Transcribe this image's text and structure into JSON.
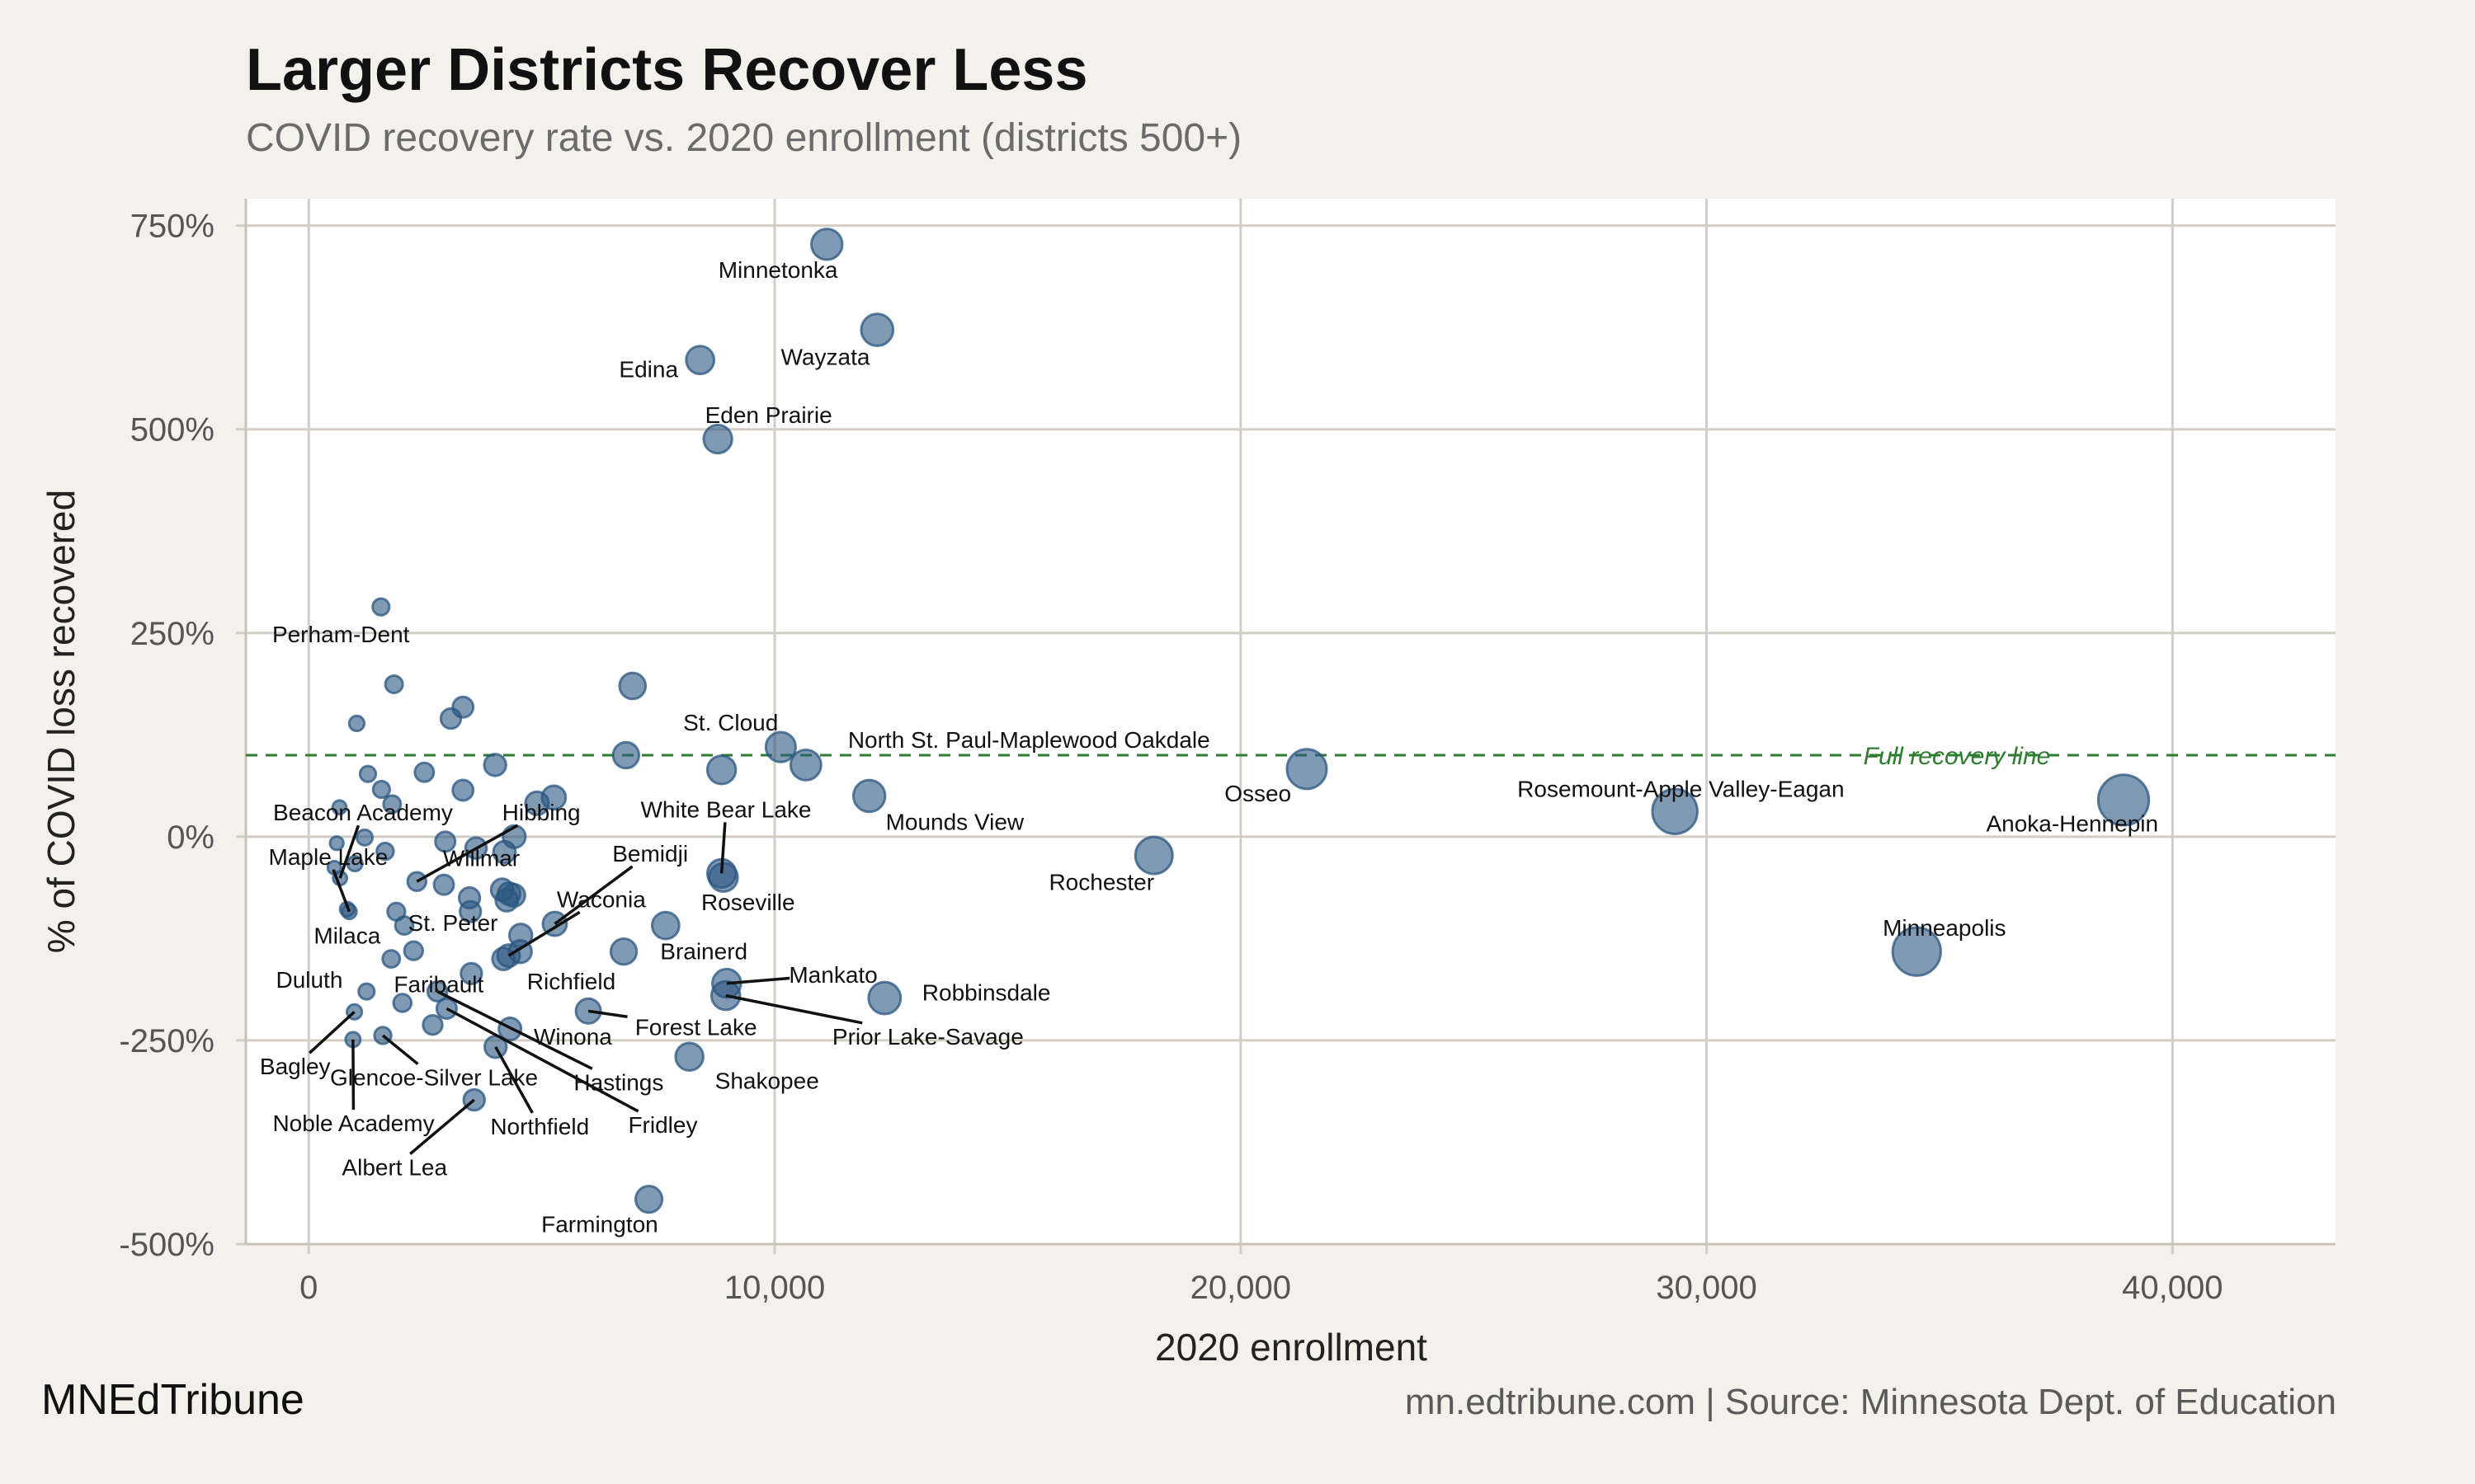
{
  "header": {
    "title": "Larger Districts Recover Less",
    "subtitle": "COVID recovery rate vs. 2020 enrollment (districts 500+)"
  },
  "footer": {
    "brand": "MNEdTribune",
    "source": "mn.edtribune.com | Source: Minnesota Dept. of Education"
  },
  "colors": {
    "background": "#f4f1ec",
    "panel": "#ffffff",
    "grid": "#d3cec5",
    "point": "#2b5680",
    "reference_line": "#2e7d32"
  },
  "chart_data": {
    "type": "scatter",
    "xlabel": "2020 enrollment",
    "ylabel": "% of COVID loss recovered",
    "xlim": [
      -1350,
      43500
    ],
    "ylim": [
      -500,
      783
    ],
    "x_ticks": [
      0,
      10000,
      20000,
      30000,
      40000
    ],
    "x_tick_labels": [
      "0",
      "10,000",
      "20,000",
      "30,000",
      "40,000"
    ],
    "y_ticks": [
      750,
      500,
      250,
      0,
      -250,
      -500
    ],
    "y_tick_labels": [
      "750%",
      "500%",
      "250%",
      "0%",
      "-250%",
      "-500%"
    ],
    "grid": true,
    "point_size_encodes": "2020 enrollment",
    "reference_line": {
      "y": 100,
      "label": "Full recovery line",
      "style": "dashed"
    },
    "points": [
      {
        "name": "Minnetonka",
        "x": 11120,
        "y": 727
      },
      {
        "name": "Wayzata",
        "x": 12200,
        "y": 622
      },
      {
        "name": "Edina",
        "x": 8400,
        "y": 585
      },
      {
        "name": "Eden Prairie",
        "x": 8780,
        "y": 488
      },
      {
        "name": "Perham-Dent",
        "x": 1550,
        "y": 282
      },
      {
        "name": "St. Cloud",
        "x": 10130,
        "y": 110
      },
      {
        "name": "North St. Paul-Maplewood Oakdale",
        "x": 10670,
        "y": 88
      },
      {
        "name": "Mounds View",
        "x": 12030,
        "y": 50
      },
      {
        "name": "White Bear Lake",
        "x": 8860,
        "y": -45
      },
      {
        "name": "Roseville",
        "x": 8900,
        "y": -50
      },
      {
        "name": "Osseo",
        "x": 21420,
        "y": 83
      },
      {
        "name": "Rosemount-Apple Valley-Eagan",
        "x": 29320,
        "y": 31
      },
      {
        "name": "Anoka-Hennepin",
        "x": 38950,
        "y": 45
      },
      {
        "name": "Rochester",
        "x": 18140,
        "y": -23
      },
      {
        "name": "Minneapolis",
        "x": 34510,
        "y": -141
      },
      {
        "name": "Beacon Academy",
        "x": 670,
        "y": -51
      },
      {
        "name": "Hibbing",
        "x": 2320,
        "y": -55
      },
      {
        "name": "Maple Lake",
        "x": 870,
        "y": -92
      },
      {
        "name": "Willmar",
        "x": 2930,
        "y": -6
      },
      {
        "name": "Bemidji",
        "x": 5280,
        "y": -107
      },
      {
        "name": "Milaca",
        "x": 826,
        "y": -89
      },
      {
        "name": "St. Peter",
        "x": 4550,
        "y": -121
      },
      {
        "name": "Waconia",
        "x": 4290,
        "y": -146
      },
      {
        "name": "Brainerd",
        "x": 7660,
        "y": -109
      },
      {
        "name": "Richfield",
        "x": 6760,
        "y": -141
      },
      {
        "name": "Mankato",
        "x": 8970,
        "y": -180
      },
      {
        "name": "Robbinsdale",
        "x": 12360,
        "y": -198
      },
      {
        "name": "Duluth",
        "x": 1240,
        "y": -190
      },
      {
        "name": "Faribault",
        "x": 3490,
        "y": -168
      },
      {
        "name": "Forest Lake",
        "x": 6000,
        "y": -214
      },
      {
        "name": "Prior Lake-Savage",
        "x": 8950,
        "y": -195
      },
      {
        "name": "Winona",
        "x": 4320,
        "y": -236
      },
      {
        "name": "Hastings",
        "x": 2760,
        "y": -190
      },
      {
        "name": "Shakopee",
        "x": 8170,
        "y": -270
      },
      {
        "name": "Bagley",
        "x": 980,
        "y": -215
      },
      {
        "name": "Glencoe-Silver Lake",
        "x": 1590,
        "y": -244
      },
      {
        "name": "Noble Academy",
        "x": 950,
        "y": -249
      },
      {
        "name": "Northfield",
        "x": 4010,
        "y": -258
      },
      {
        "name": "Fridley",
        "x": 2960,
        "y": -211
      },
      {
        "name": "Albert Lea",
        "x": 3550,
        "y": -323
      },
      {
        "name": "Farmington",
        "x": 7300,
        "y": -445
      },
      {
        "x": 1830,
        "y": 187
      },
      {
        "x": 1030,
        "y": 139
      },
      {
        "x": 3050,
        "y": 145
      },
      {
        "x": 3310,
        "y": 159
      },
      {
        "x": 6950,
        "y": 185
      },
      {
        "x": 6810,
        "y": 100
      },
      {
        "x": 8860,
        "y": 82
      },
      {
        "x": 4000,
        "y": 88
      },
      {
        "x": 1270,
        "y": 77
      },
      {
        "x": 2480,
        "y": 79
      },
      {
        "x": 1560,
        "y": 58
      },
      {
        "x": 3310,
        "y": 57
      },
      {
        "x": 1790,
        "y": 40
      },
      {
        "x": 660,
        "y": 36
      },
      {
        "x": 4900,
        "y": 41
      },
      {
        "x": 5260,
        "y": 48
      },
      {
        "x": 4410,
        "y": 0
      },
      {
        "x": 3590,
        "y": -14
      },
      {
        "x": 4200,
        "y": -19
      },
      {
        "x": 1200,
        "y": -1
      },
      {
        "x": 600,
        "y": -8
      },
      {
        "x": 1640,
        "y": -18
      },
      {
        "x": 990,
        "y": -33
      },
      {
        "x": 550,
        "y": -38
      },
      {
        "x": 2900,
        "y": -59
      },
      {
        "x": 3450,
        "y": -75
      },
      {
        "x": 4150,
        "y": -65
      },
      {
        "x": 4300,
        "y": -70
      },
      {
        "x": 4400,
        "y": -72
      },
      {
        "x": 4250,
        "y": -78
      },
      {
        "x": 1880,
        "y": -92
      },
      {
        "x": 2050,
        "y": -109
      },
      {
        "x": 2250,
        "y": -140
      },
      {
        "x": 1770,
        "y": -150
      },
      {
        "x": 4180,
        "y": -150
      },
      {
        "x": 2010,
        "y": -204
      },
      {
        "x": 2660,
        "y": -231
      },
      {
        "x": 3470,
        "y": -92
      },
      {
        "x": 4540,
        "y": -141
      }
    ]
  }
}
